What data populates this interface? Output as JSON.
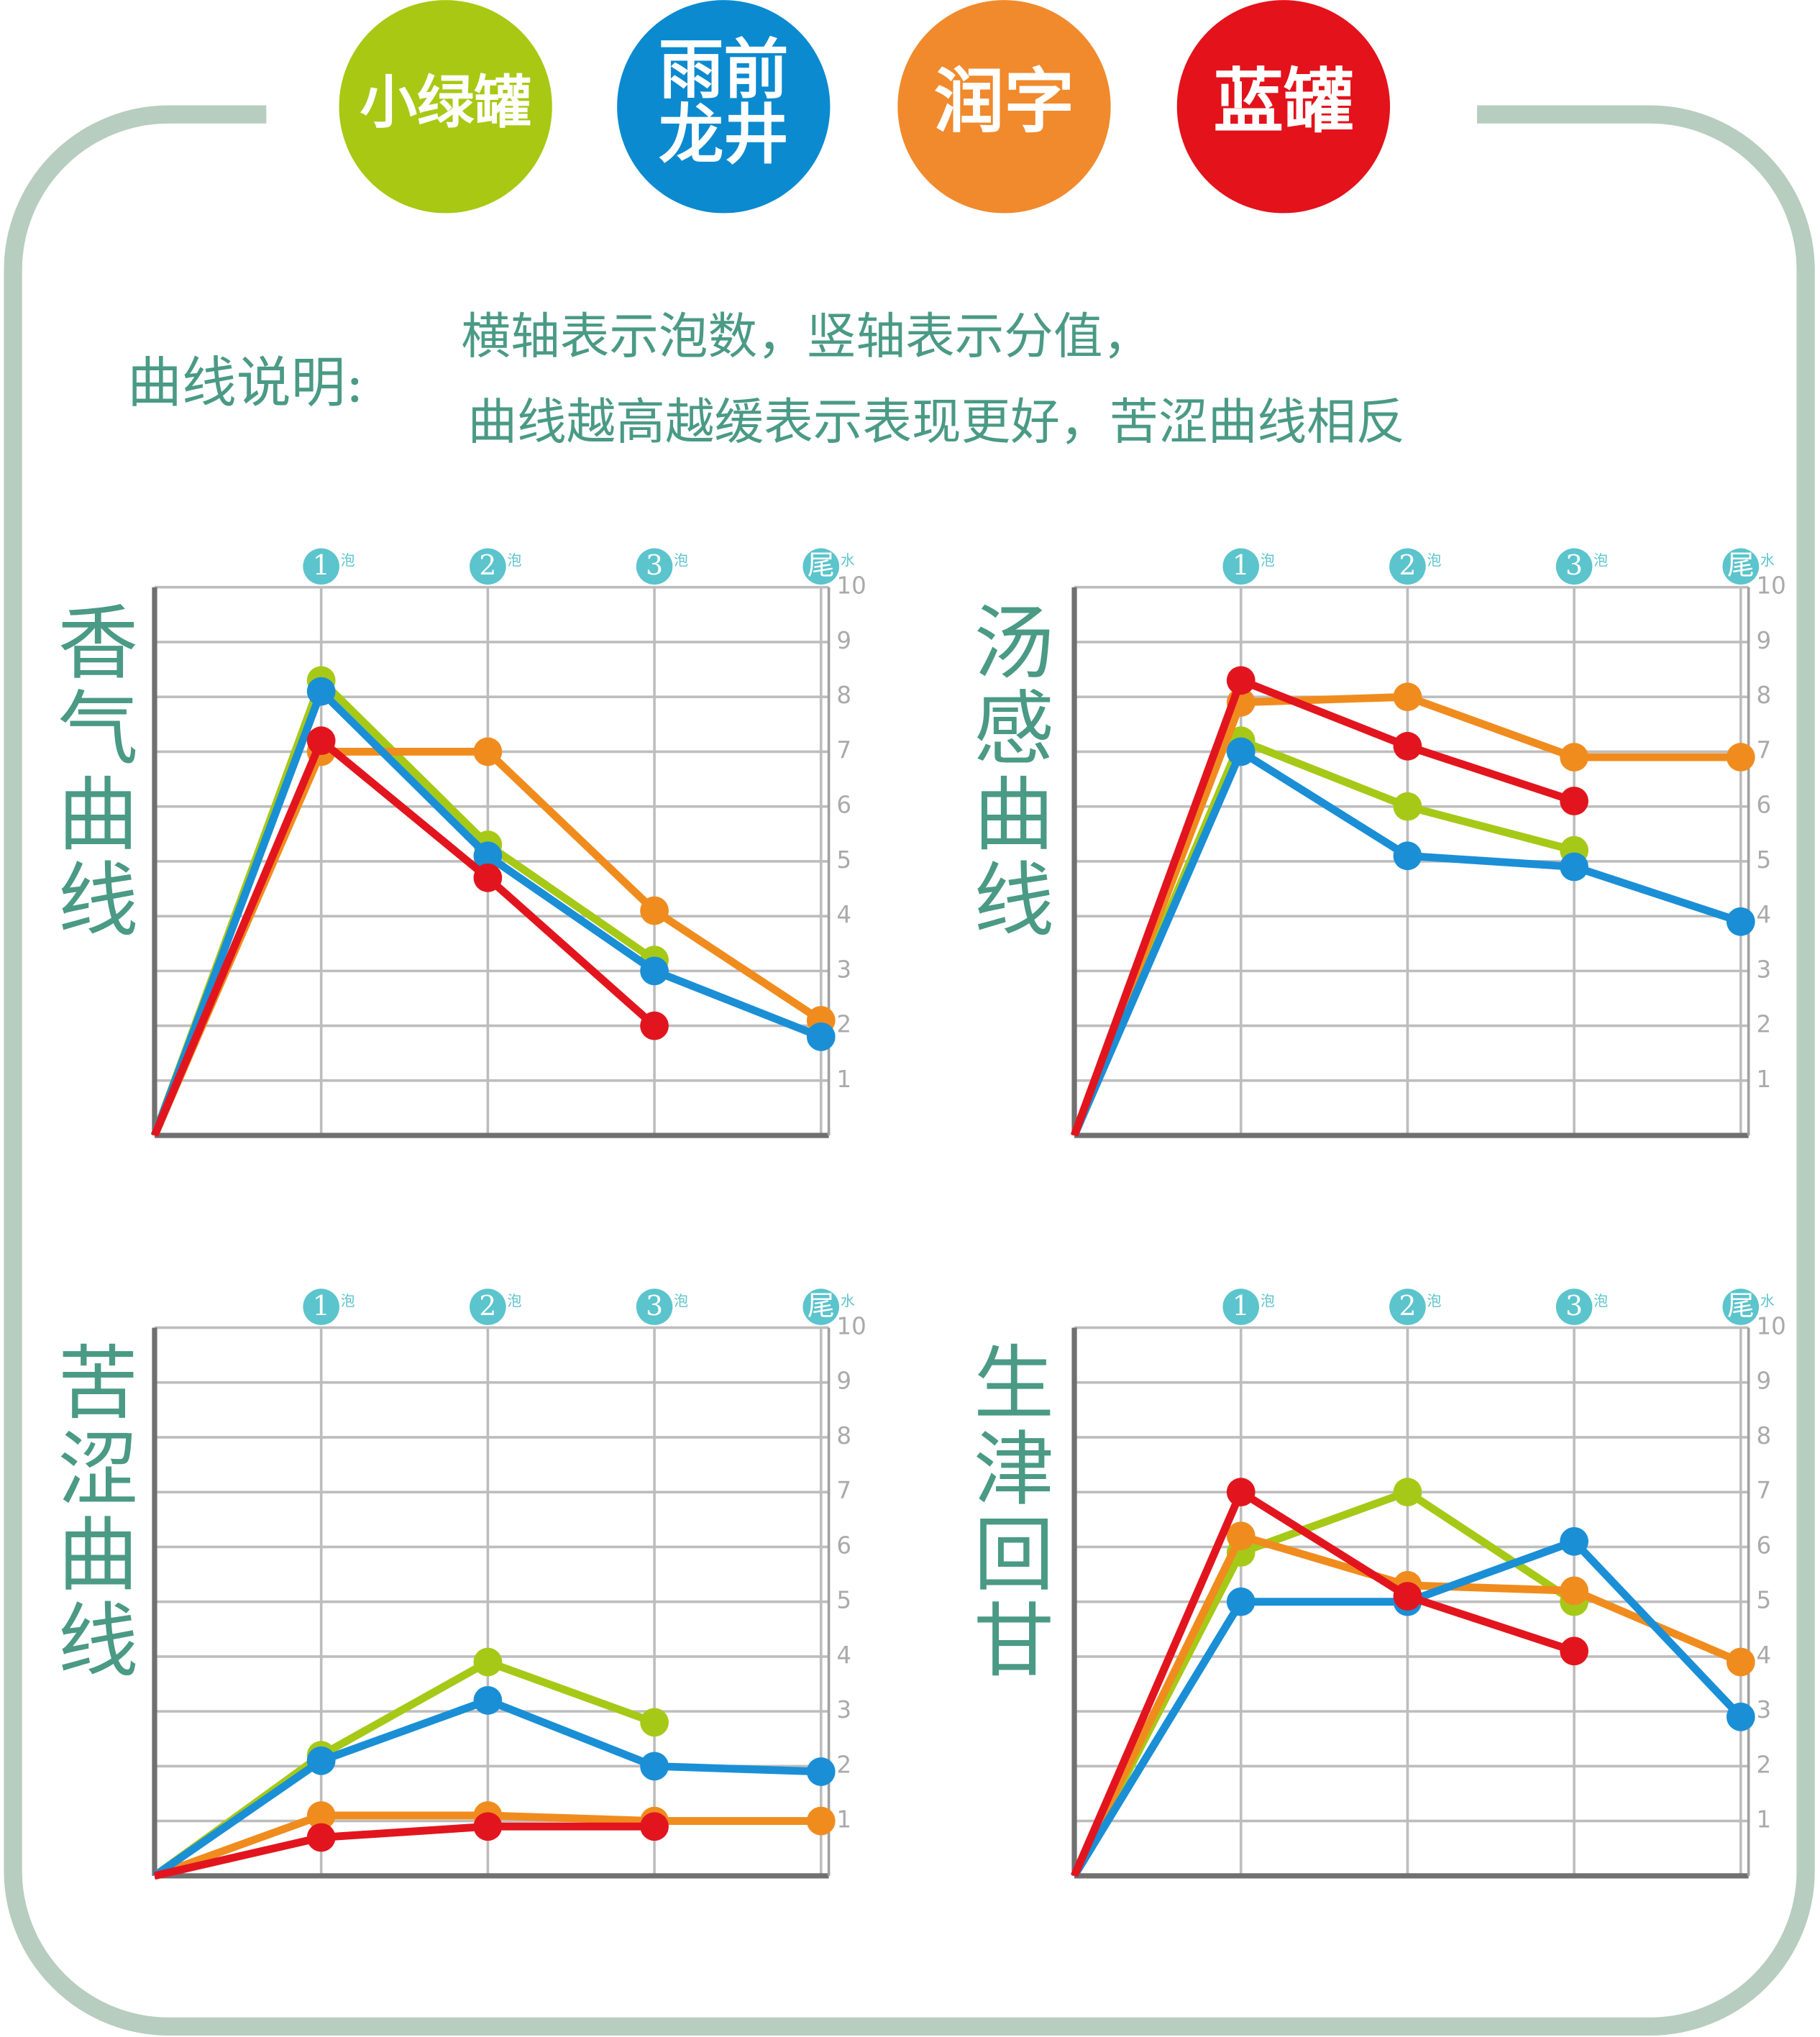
{
  "legend": [
    {
      "lines": [
        "小绿罐"
      ],
      "color": "#a8c814"
    },
    {
      "lines": [
        "雨前",
        "龙井"
      ],
      "color": "#0b8ad0"
    },
    {
      "lines": [
        "润字"
      ],
      "color": "#f08a2c"
    },
    {
      "lines": [
        "蓝罐"
      ],
      "color": "#e3121b"
    }
  ],
  "note": {
    "label": "曲线说明:",
    "lines": [
      "横轴表示泡数，竖轴表示分值，",
      "曲线越高越缓表示表现更好，苦涩曲线相反"
    ]
  },
  "chart_data": [
    {
      "type": "line",
      "title": "香气曲线",
      "categories": [
        null,
        "1",
        "2",
        "3",
        "尾"
      ],
      "category_suffixes": [
        null,
        "泡",
        "泡",
        "泡",
        "水"
      ],
      "ylim": [
        0,
        10
      ],
      "yticks": [
        1,
        2,
        3,
        4,
        5,
        6,
        7,
        8,
        9,
        10
      ],
      "grid": true,
      "series": [
        {
          "color": "#a6c917",
          "values": [
            0,
            8.3,
            5.3,
            3.2,
            null
          ]
        },
        {
          "color": "#f08c1e",
          "values": [
            0,
            7.0,
            7.0,
            4.1,
            2.1
          ]
        },
        {
          "color": "#1a8fd6",
          "values": [
            0,
            8.1,
            5.1,
            3.0,
            1.8
          ]
        },
        {
          "color": "#e2151e",
          "values": [
            0,
            7.2,
            4.7,
            2.0,
            null
          ]
        }
      ]
    },
    {
      "type": "line",
      "title": "汤感曲线",
      "categories": [
        null,
        "1",
        "2",
        "3",
        "尾"
      ],
      "category_suffixes": [
        null,
        "泡",
        "泡",
        "泡",
        "水"
      ],
      "ylim": [
        0,
        10
      ],
      "yticks": [
        1,
        2,
        3,
        4,
        5,
        6,
        7,
        8,
        9,
        10
      ],
      "grid": true,
      "series": [
        {
          "color": "#a6c917",
          "values": [
            0,
            7.2,
            6.0,
            5.2,
            null
          ]
        },
        {
          "color": "#f08c1e",
          "values": [
            0,
            7.9,
            8.0,
            6.9,
            6.9
          ]
        },
        {
          "color": "#1a8fd6",
          "values": [
            0,
            7.0,
            5.1,
            4.9,
            3.9
          ]
        },
        {
          "color": "#e2151e",
          "values": [
            0,
            8.3,
            7.1,
            6.1,
            null
          ]
        }
      ]
    },
    {
      "type": "line",
      "title": "苦涩曲线",
      "categories": [
        null,
        "1",
        "2",
        "3",
        "尾"
      ],
      "category_suffixes": [
        null,
        "泡",
        "泡",
        "泡",
        "水"
      ],
      "ylim": [
        0,
        10
      ],
      "yticks": [
        1,
        2,
        3,
        4,
        5,
        6,
        7,
        8,
        9,
        10
      ],
      "grid": true,
      "series": [
        {
          "color": "#a6c917",
          "values": [
            0,
            2.2,
            3.9,
            2.8,
            null
          ]
        },
        {
          "color": "#f08c1e",
          "values": [
            0,
            1.1,
            1.1,
            1.0,
            1.0
          ]
        },
        {
          "color": "#1a8fd6",
          "values": [
            0,
            2.1,
            3.2,
            2.0,
            1.9
          ]
        },
        {
          "color": "#e2151e",
          "values": [
            0,
            0.7,
            0.9,
            0.9,
            null
          ]
        }
      ]
    },
    {
      "type": "line",
      "title": "生津回甘",
      "categories": [
        null,
        "1",
        "2",
        "3",
        "尾"
      ],
      "category_suffixes": [
        null,
        "泡",
        "泡",
        "泡",
        "水"
      ],
      "ylim": [
        0,
        10
      ],
      "yticks": [
        1,
        2,
        3,
        4,
        5,
        6,
        7,
        8,
        9,
        10
      ],
      "grid": true,
      "series": [
        {
          "color": "#a6c917",
          "values": [
            0,
            5.9,
            7.0,
            5.0,
            null
          ]
        },
        {
          "color": "#f08c1e",
          "values": [
            0,
            6.2,
            5.3,
            5.2,
            3.9
          ]
        },
        {
          "color": "#1a8fd6",
          "values": [
            0,
            5.0,
            5.0,
            6.1,
            2.9
          ]
        },
        {
          "color": "#e2151e",
          "values": [
            0,
            7.0,
            5.1,
            4.1,
            null
          ]
        }
      ]
    }
  ]
}
